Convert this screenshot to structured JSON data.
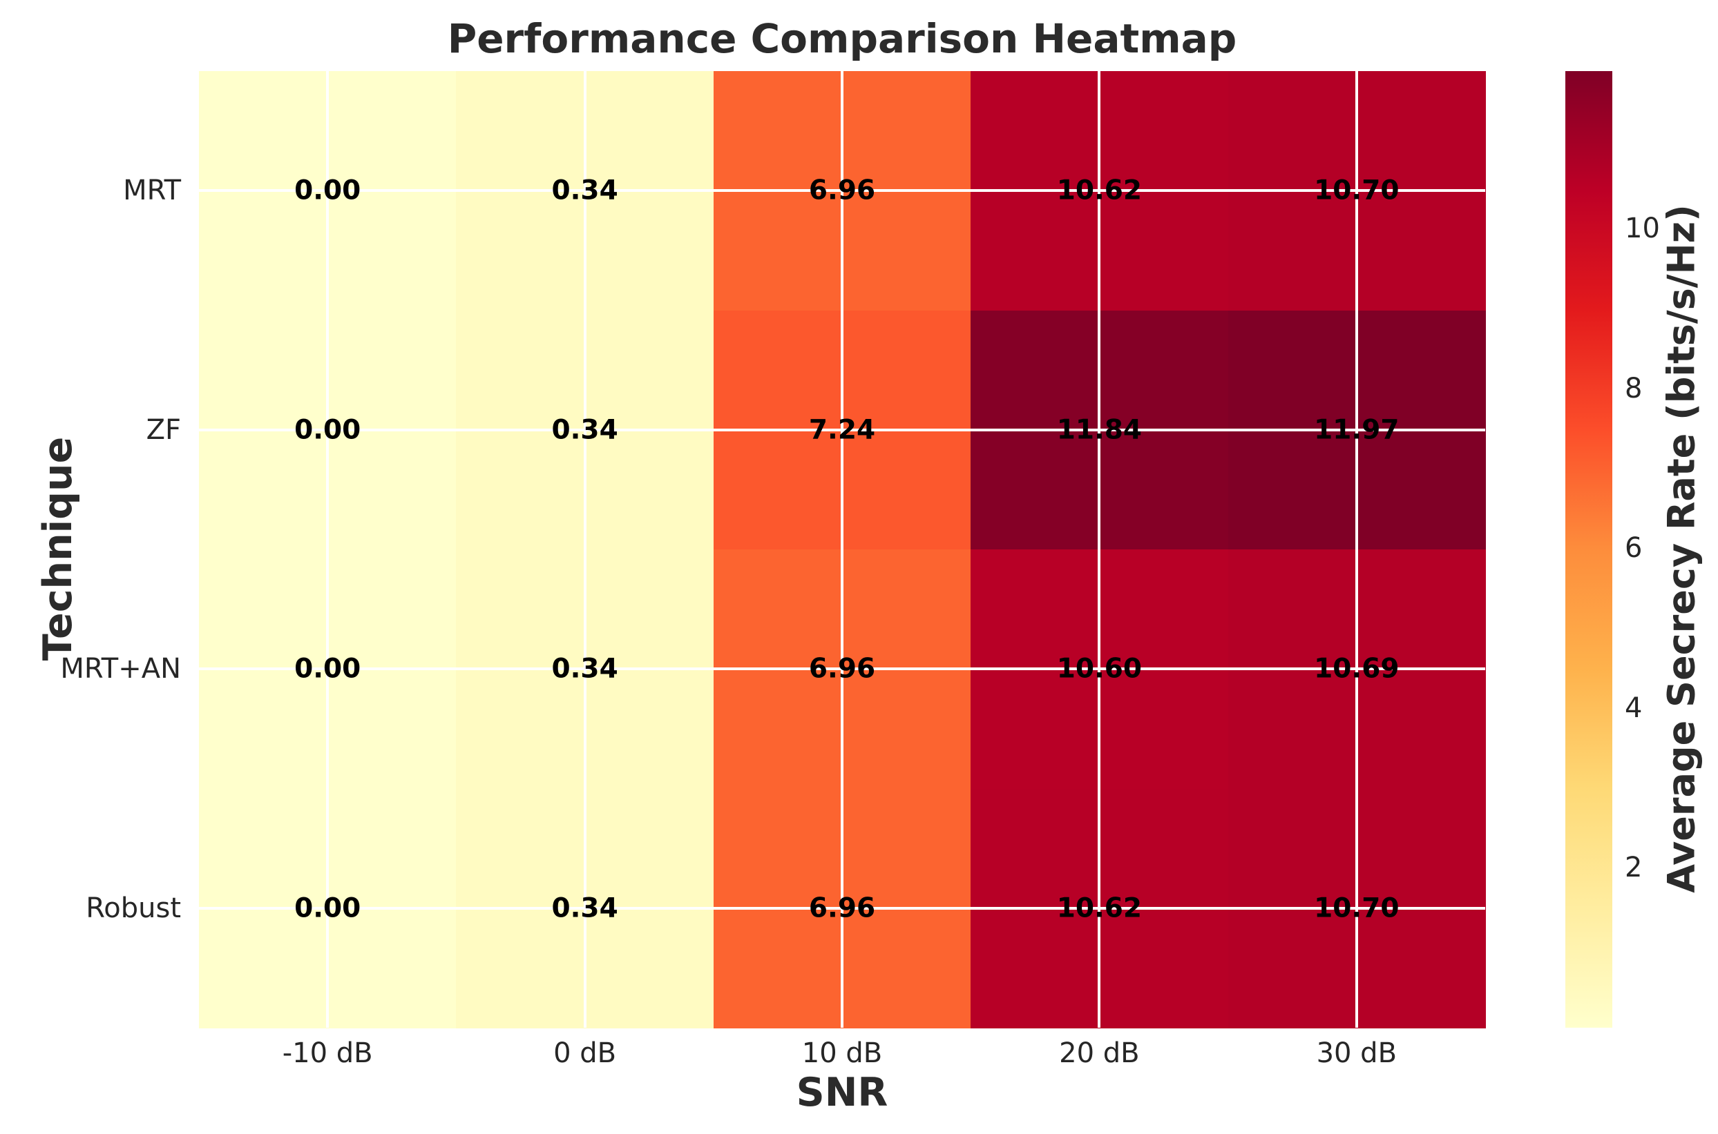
{
  "chart_data": {
    "type": "heatmap",
    "title": "Performance Comparison Heatmap",
    "xlabel": "SNR",
    "ylabel": "Technique",
    "x_categories": [
      "-10 dB",
      "0 dB",
      "10 dB",
      "20 dB",
      "30 dB"
    ],
    "y_categories": [
      "MRT",
      "ZF",
      "MRT+AN",
      "Robust"
    ],
    "series": [
      {
        "name": "MRT",
        "values": [
          0.0,
          0.34,
          6.96,
          10.62,
          10.7
        ]
      },
      {
        "name": "ZF",
        "values": [
          0.0,
          0.34,
          7.24,
          11.84,
          11.97
        ]
      },
      {
        "name": "MRT+AN",
        "values": [
          0.0,
          0.34,
          6.96,
          10.6,
          10.69
        ]
      },
      {
        "name": "Robust",
        "values": [
          0.0,
          0.34,
          6.96,
          10.62,
          10.7
        ]
      }
    ],
    "annotation_decimals": 2,
    "colorbar": {
      "label": "Average Secrecy Rate (bits/s/Hz)",
      "ticks": [
        2,
        4,
        6,
        8,
        10
      ],
      "vmin": 0,
      "vmax": 11.97
    },
    "colormap": {
      "name": "YlOrRd",
      "stops": [
        "#ffffcc",
        "#ffeda0",
        "#fed976",
        "#feb24c",
        "#fd8d3c",
        "#fc4e2a",
        "#e31a1c",
        "#bd0026",
        "#800026"
      ]
    },
    "grid": {
      "show": true,
      "color": "#ffffff",
      "linewidth": 4
    },
    "legend_position": "right",
    "text_color": "#262626",
    "annotation_color": "#000000",
    "background": "#ffffff"
  }
}
